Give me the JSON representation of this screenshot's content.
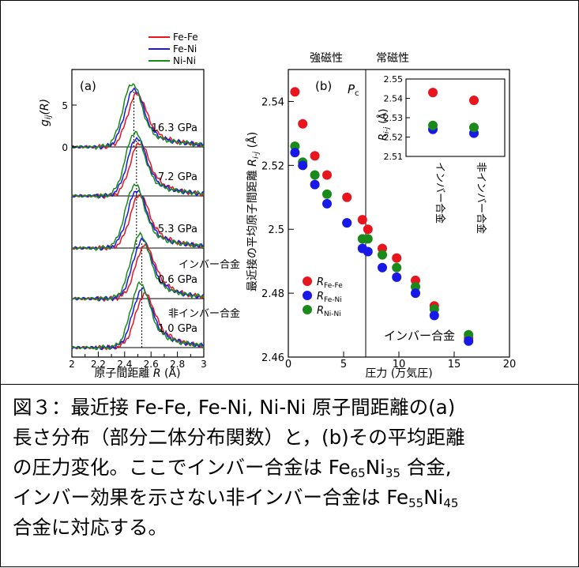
{
  "panel_a_label": "(a)",
  "panel_b_label": "(b)",
  "legend_a": [
    "Fe-Fe",
    "Fe-Ni",
    "Ni-Ni"
  ],
  "legend_b": [
    {
      "base": "R",
      "sub": "Fe-Fe"
    },
    {
      "base": "R",
      "sub": "Fe-Ni"
    },
    {
      "base": "R",
      "sub": "Ni-Ni"
    }
  ],
  "region_labels": {
    "ferro": "強磁性",
    "para": "常磁性",
    "pc": "P",
    "pc_sub": "c"
  },
  "invar_label_b": "インバー合金",
  "inset_labels": {
    "invar": "インバー合金",
    "noninvar": "非インバー合金"
  },
  "caption": {
    "line1": "図３：最近接 Fe-Fe, Fe-Ni, Ni-Ni 原子間距離の(a)",
    "line2": "長さ分布（部分二体分布関数）と，(b)その平均距離",
    "line3": "の圧力変化。ここでインバー合金は Fe",
    "line3_sub1": "65",
    "line3_mid": "Ni",
    "line3_sub2": "35",
    "line3_end": " 合金,",
    "line4": "インバー効果を示さない非インバー合金は Fe",
    "line4_sub1": "55",
    "line4_mid": "Ni",
    "line4_sub2": "45",
    "line5": "合金に対応する。"
  },
  "colors": {
    "Fe-Fe": "#e8141e",
    "Fe-Ni": "#1818e8",
    "Ni-Ni": "#1a8a1a"
  },
  "chart_data": [
    {
      "id": "a",
      "type": "line",
      "xlabel": "原子間距離 R (Å)",
      "ylabel": "g_ij(R)",
      "xlim": [
        2,
        3
      ],
      "xticks": [
        2,
        2.2,
        2.4,
        2.6,
        2.8,
        3
      ],
      "yticks_top": [
        0,
        5
      ],
      "traces": [
        {
          "label": "16.3 GPa",
          "peak": 2.47
        },
        {
          "label": "7.2 GPa",
          "peak": 2.49
        },
        {
          "label": "5.3 GPa",
          "peak": 2.49
        },
        {
          "label": "0.6 GPa",
          "note": "インバー合金",
          "peak": 2.53
        },
        {
          "label": "1.0 GPa",
          "note": "非インバー合金",
          "peak": 2.53
        }
      ],
      "series": [
        {
          "name": "Fe-Fe"
        },
        {
          "name": "Fe-Ni"
        },
        {
          "name": "Ni-Ni"
        }
      ]
    },
    {
      "id": "b",
      "type": "scatter",
      "xlabel": "圧力 (万気圧)",
      "ylabel": "最近接の平均原子間距離 R_i-j (Å)",
      "xlim": [
        0,
        20
      ],
      "ylim": [
        2.46,
        2.55
      ],
      "xticks": [
        0,
        5,
        10,
        15,
        20
      ],
      "yticks": [
        2.46,
        2.48,
        2.5,
        2.52,
        2.54
      ],
      "pc": 7,
      "series": [
        {
          "name": "R_Fe-Fe",
          "points": [
            [
              0.6,
              2.543
            ],
            [
              1.3,
              2.533
            ],
            [
              2.4,
              2.523
            ],
            [
              3.5,
              2.517
            ],
            [
              5.3,
              2.51
            ],
            [
              6.7,
              2.503
            ],
            [
              7.2,
              2.5
            ],
            [
              8.5,
              2.494
            ],
            [
              9.8,
              2.491
            ],
            [
              11.5,
              2.484
            ],
            [
              13.2,
              2.476
            ],
            [
              16.3,
              2.466
            ]
          ]
        },
        {
          "name": "R_Fe-Ni",
          "points": [
            [
              0.6,
              2.524
            ],
            [
              1.3,
              2.52
            ],
            [
              2.4,
              2.514
            ],
            [
              3.5,
              2.508
            ],
            [
              5.3,
              2.502
            ],
            [
              6.7,
              2.494
            ],
            [
              7.2,
              2.493
            ],
            [
              8.5,
              2.488
            ],
            [
              9.8,
              2.485
            ],
            [
              11.5,
              2.48
            ],
            [
              13.2,
              2.473
            ],
            [
              16.3,
              2.465
            ]
          ]
        },
        {
          "name": "R_Ni-Ni",
          "points": [
            [
              0.6,
              2.526
            ],
            [
              1.3,
              2.521
            ],
            [
              2.4,
              2.517
            ],
            [
              3.5,
              2.511
            ],
            [
              5.3,
              2.502
            ],
            [
              6.7,
              2.497
            ],
            [
              7.2,
              2.497
            ],
            [
              8.5,
              2.492
            ],
            [
              9.8,
              2.488
            ],
            [
              11.5,
              2.482
            ],
            [
              13.2,
              2.475
            ],
            [
              16.3,
              2.467
            ]
          ]
        }
      ]
    },
    {
      "id": "b-inset",
      "type": "scatter",
      "ylabel": "R_i-j (Å)",
      "ylim": [
        2.51,
        2.55
      ],
      "yticks": [
        2.51,
        2.52,
        2.53,
        2.54,
        2.55
      ],
      "categories": [
        "インバー合金",
        "非インバー合金"
      ],
      "series": [
        {
          "name": "Fe-Fe",
          "values": [
            2.543,
            2.539
          ]
        },
        {
          "name": "Fe-Ni",
          "values": [
            2.524,
            2.522
          ]
        },
        {
          "name": "Ni-Ni",
          "values": [
            2.526,
            2.525
          ]
        }
      ]
    }
  ]
}
